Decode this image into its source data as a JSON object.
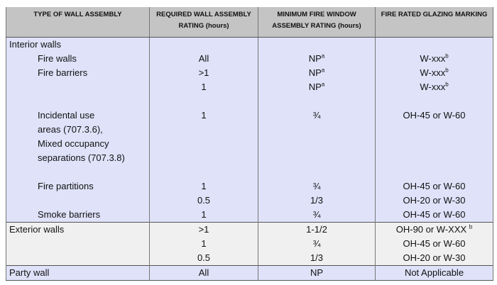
{
  "headers": [
    "TYPE OF WALL ASSEMBLY",
    "REQUIRED WALL ASSEMBLY RATING (hours)",
    "MINIMUM FIRE WINDOW ASSEMBLY RATING (hours)",
    "FIRE RATED GLAZING MARKING"
  ],
  "interior": {
    "label": "Interior walls",
    "rows": [
      {
        "type": "Fire walls",
        "rating": "All",
        "window": "NP",
        "window_sup": "a",
        "marking": "W-xxx",
        "marking_sup": "b"
      },
      {
        "type": "Fire barriers",
        "rating": ">1",
        "window": "NP",
        "window_sup": "a",
        "marking": "W-xxx",
        "marking_sup": "b"
      },
      {
        "type": "",
        "rating": "1",
        "window": "NP",
        "window_sup": "a",
        "marking": "W-xxx",
        "marking_sup": "b"
      },
      {
        "type_lines": [
          "Incidental use",
          "areas (707.3.6),",
          "Mixed occupancy",
          "separations (707.3.8)"
        ],
        "rating": "1",
        "window": "¾",
        "marking": "OH-45 or W-60"
      },
      {
        "type": "Fire partitions",
        "rating": "1",
        "window": "¾",
        "marking": "OH-45 or W-60"
      },
      {
        "type": "",
        "rating": "0.5",
        "window": "1/3",
        "marking": "OH-20 or W-30"
      },
      {
        "type": "Smoke barriers",
        "rating": "1",
        "window": "¾",
        "marking": "OH-45 or W-60"
      }
    ]
  },
  "exterior": {
    "label": "Exterior walls",
    "rows": [
      {
        "rating": ">1",
        "window": "1-1/2",
        "marking": "OH-90 or W-XXX ",
        "marking_sup": "b"
      },
      {
        "rating": "1",
        "window": "¾",
        "marking": "OH-45 or W-60"
      },
      {
        "rating": "0.5",
        "window": "1/3",
        "marking": "OH-20 or W-30"
      }
    ]
  },
  "party": {
    "label": "Party wall",
    "rating": "All",
    "window": "NP",
    "marking": "Not Applicable"
  },
  "colors": {
    "header": "#c4c4c4",
    "interior": "#dfe2f9",
    "exterior": "#f0f0f0"
  }
}
